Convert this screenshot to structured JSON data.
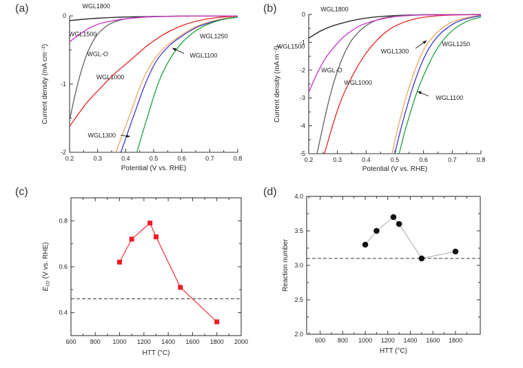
{
  "figure": {
    "background": "#ffffff"
  },
  "chart_data": [
    {
      "id": "a",
      "panel_label": "(a)",
      "type": "line",
      "xlabel": "Potential (V vs. RHE)",
      "ylabel": "Current density (mA cm⁻²)",
      "xlim": [
        0.2,
        0.8
      ],
      "ylim": [
        -2,
        0
      ],
      "xticks": [
        0.2,
        0.3,
        0.4,
        0.5,
        0.6,
        0.7,
        0.8
      ],
      "xtick_labels": [
        "0.2",
        "0.3",
        "0.4",
        "0.5",
        "0.6",
        "0.7",
        "0.8"
      ],
      "xminor": [
        0.25,
        0.35,
        0.45,
        0.55,
        0.65,
        0.75
      ],
      "yticks": [
        0,
        -1,
        -2
      ],
      "ytick_labels": [
        "0",
        "-1",
        "-2"
      ],
      "yminor": [
        -0.5,
        -1.5
      ],
      "frame": "axes",
      "series": [
        {
          "name": "WGL1800",
          "color": "#1a1a1a",
          "points": [
            [
              0.2,
              -0.07
            ],
            [
              0.25,
              -0.05
            ],
            [
              0.3,
              -0.035
            ],
            [
              0.35,
              -0.024
            ],
            [
              0.4,
              -0.017
            ],
            [
              0.5,
              -0.009
            ],
            [
              0.6,
              -0.004
            ],
            [
              0.7,
              -0.002
            ],
            [
              0.8,
              -0.001
            ]
          ]
        },
        {
          "name": "WGL-O",
          "color": "#5e5e5e",
          "points": [
            [
              0.2,
              -1.53
            ],
            [
              0.22,
              -1.15
            ],
            [
              0.24,
              -0.83
            ],
            [
              0.26,
              -0.58
            ],
            [
              0.28,
              -0.4
            ],
            [
              0.3,
              -0.27
            ],
            [
              0.33,
              -0.155
            ],
            [
              0.36,
              -0.09
            ],
            [
              0.4,
              -0.045
            ],
            [
              0.45,
              -0.02
            ],
            [
              0.5,
              -0.009
            ],
            [
              0.6,
              -0.003
            ],
            [
              0.8,
              -0.001
            ]
          ]
        },
        {
          "name": "WGL1000",
          "color": "#e52420",
          "points": [
            [
              0.2,
              -1.62
            ],
            [
              0.26,
              -1.28
            ],
            [
              0.31,
              -1.06
            ],
            [
              0.36,
              -0.85
            ],
            [
              0.42,
              -0.64
            ],
            [
              0.47,
              -0.46
            ],
            [
              0.51,
              -0.34
            ],
            [
              0.55,
              -0.24
            ],
            [
              0.6,
              -0.145
            ],
            [
              0.65,
              -0.08
            ],
            [
              0.7,
              -0.04
            ],
            [
              0.75,
              -0.016
            ],
            [
              0.8,
              -0.006
            ]
          ]
        },
        {
          "name": "WGL1300",
          "color": "#f0a35e",
          "points": [
            [
              0.365,
              -2
            ],
            [
              0.415,
              -1.45
            ],
            [
              0.455,
              -1.0
            ],
            [
              0.495,
              -0.68
            ],
            [
              0.54,
              -0.46
            ],
            [
              0.585,
              -0.32
            ],
            [
              0.635,
              -0.19
            ],
            [
              0.69,
              -0.1
            ],
            [
              0.75,
              -0.04
            ],
            [
              0.8,
              -0.015
            ]
          ]
        },
        {
          "name": "WGL1100",
          "color": "#3a35c8",
          "points": [
            [
              0.383,
              -2
            ],
            [
              0.43,
              -1.45
            ],
            [
              0.47,
              -1.0
            ],
            [
              0.51,
              -0.66
            ],
            [
              0.555,
              -0.44
            ],
            [
              0.6,
              -0.3
            ],
            [
              0.65,
              -0.175
            ],
            [
              0.7,
              -0.1
            ],
            [
              0.75,
              -0.048
            ],
            [
              0.8,
              -0.02
            ]
          ]
        },
        {
          "name": "WGL1250",
          "color": "#1aa13e",
          "points": [
            [
              0.44,
              -2
            ],
            [
              0.48,
              -1.45
            ],
            [
              0.52,
              -0.95
            ],
            [
              0.56,
              -0.62
            ],
            [
              0.6,
              -0.4
            ],
            [
              0.64,
              -0.25
            ],
            [
              0.68,
              -0.15
            ],
            [
              0.72,
              -0.085
            ],
            [
              0.76,
              -0.042
            ],
            [
              0.8,
              -0.018
            ]
          ]
        },
        {
          "name": "WGL1500",
          "color": "#cc2fcc",
          "points": [
            [
              0.2,
              -0.38
            ],
            [
              0.25,
              -0.23
            ],
            [
              0.3,
              -0.125
            ],
            [
              0.35,
              -0.075
            ],
            [
              0.4,
              -0.045
            ],
            [
              0.45,
              -0.025
            ],
            [
              0.5,
              -0.013
            ],
            [
              0.6,
              -0.005
            ],
            [
              0.8,
              -0.001
            ]
          ]
        }
      ],
      "annotations": [
        {
          "text": "WGL1800",
          "x": 0.295,
          "y": 0.14
        },
        {
          "text": "WGL1500",
          "x": 0.247,
          "y": -0.27
        },
        {
          "text": "WGL-O",
          "x": 0.3,
          "y": -0.56
        },
        {
          "text": "WGL1000",
          "x": 0.345,
          "y": -0.9
        },
        {
          "text": "WGL1250",
          "x": 0.715,
          "y": -0.3
        },
        {
          "text": "WGL1100",
          "x": 0.678,
          "y": -0.58,
          "arrow": {
            "from": [
              0.608,
              -0.55
            ],
            "to": [
              0.565,
              -0.47
            ]
          }
        },
        {
          "text": "WGL1300",
          "x": 0.315,
          "y": -1.75,
          "arrow": {
            "from": [
              0.383,
              -1.75
            ],
            "to": [
              0.417,
              -1.77
            ]
          }
        }
      ]
    },
    {
      "id": "b",
      "panel_label": "(b)",
      "type": "line",
      "xlabel": "Potential (V vs. RHE)",
      "ylabel": "Current density (mA m⁻²)",
      "xlim": [
        0.2,
        0.8
      ],
      "ylim": [
        -5,
        0
      ],
      "xticks": [
        0.2,
        0.3,
        0.4,
        0.5,
        0.6,
        0.7,
        0.8
      ],
      "xtick_labels": [
        "0.2",
        "0.3",
        "0.4",
        "0.5",
        "0.6",
        "0.7",
        "0.8"
      ],
      "xminor": [
        0.25,
        0.35,
        0.45,
        0.55,
        0.65,
        0.75
      ],
      "yticks": [
        0,
        -1,
        -2,
        -3,
        -4,
        -5
      ],
      "ytick_labels": [
        "0",
        "-1",
        "-2",
        "-3",
        "-4",
        "-5"
      ],
      "yminor": [
        -0.5,
        -1.5,
        -2.5,
        -3.5,
        -4.5
      ],
      "frame": "axes",
      "series": [
        {
          "name": "WGL1800",
          "color": "#1a1a1a",
          "points": [
            [
              0.2,
              -0.85
            ],
            [
              0.24,
              -0.6
            ],
            [
              0.28,
              -0.42
            ],
            [
              0.32,
              -0.3
            ],
            [
              0.36,
              -0.2
            ],
            [
              0.4,
              -0.13
            ],
            [
              0.45,
              -0.075
            ],
            [
              0.5,
              -0.04
            ],
            [
              0.55,
              -0.02
            ],
            [
              0.6,
              -0.01
            ],
            [
              0.8,
              -0.002
            ]
          ]
        },
        {
          "name": "WGL-O",
          "color": "#5e5e5e",
          "points": [
            [
              0.229,
              -5
            ],
            [
              0.25,
              -4.0
            ],
            [
              0.27,
              -3.1
            ],
            [
              0.29,
              -2.35
            ],
            [
              0.31,
              -1.75
            ],
            [
              0.33,
              -1.28
            ],
            [
              0.35,
              -0.92
            ],
            [
              0.375,
              -0.62
            ],
            [
              0.4,
              -0.4
            ],
            [
              0.43,
              -0.23
            ],
            [
              0.46,
              -0.13
            ],
            [
              0.5,
              -0.06
            ],
            [
              0.55,
              -0.025
            ],
            [
              0.6,
              -0.01
            ],
            [
              0.8,
              -0.002
            ]
          ]
        },
        {
          "name": "WGL1000",
          "color": "#e52420",
          "points": [
            [
              0.255,
              -5
            ],
            [
              0.28,
              -4.1
            ],
            [
              0.3,
              -3.45
            ],
            [
              0.32,
              -2.9
            ],
            [
              0.35,
              -2.25
            ],
            [
              0.38,
              -1.7
            ],
            [
              0.41,
              -1.25
            ],
            [
              0.44,
              -0.9
            ],
            [
              0.47,
              -0.62
            ],
            [
              0.5,
              -0.42
            ],
            [
              0.54,
              -0.25
            ],
            [
              0.58,
              -0.14
            ],
            [
              0.62,
              -0.075
            ],
            [
              0.66,
              -0.04
            ],
            [
              0.7,
              -0.02
            ],
            [
              0.8,
              -0.004
            ]
          ]
        },
        {
          "name": "WGL1300",
          "color": "#f0a35e",
          "points": [
            [
              0.49,
              -5
            ],
            [
              0.51,
              -4.1
            ],
            [
              0.53,
              -3.3
            ],
            [
              0.55,
              -2.6
            ],
            [
              0.57,
              -2.0
            ],
            [
              0.59,
              -1.5
            ],
            [
              0.61,
              -1.1
            ],
            [
              0.64,
              -0.72
            ],
            [
              0.67,
              -0.45
            ],
            [
              0.7,
              -0.27
            ],
            [
              0.73,
              -0.16
            ],
            [
              0.77,
              -0.07
            ],
            [
              0.8,
              -0.035
            ]
          ]
        },
        {
          "name": "WGL1100",
          "color": "#3a35c8",
          "points": [
            [
              0.5,
              -5
            ],
            [
              0.52,
              -4.15
            ],
            [
              0.54,
              -3.4
            ],
            [
              0.56,
              -2.7
            ],
            [
              0.58,
              -2.1
            ],
            [
              0.6,
              -1.6
            ],
            [
              0.62,
              -1.2
            ],
            [
              0.65,
              -0.78
            ],
            [
              0.68,
              -0.5
            ],
            [
              0.71,
              -0.3
            ],
            [
              0.74,
              -0.18
            ],
            [
              0.78,
              -0.08
            ],
            [
              0.8,
              -0.05
            ]
          ]
        },
        {
          "name": "WGL1250",
          "color": "#1aa13e",
          "points": [
            [
              0.515,
              -5
            ],
            [
              0.535,
              -4.2
            ],
            [
              0.555,
              -3.5
            ],
            [
              0.575,
              -2.85
            ],
            [
              0.6,
              -2.2
            ],
            [
              0.62,
              -1.75
            ],
            [
              0.64,
              -1.35
            ],
            [
              0.67,
              -0.9
            ],
            [
              0.7,
              -0.58
            ],
            [
              0.73,
              -0.36
            ],
            [
              0.76,
              -0.21
            ],
            [
              0.8,
              -0.095
            ]
          ]
        },
        {
          "name": "WGL1500",
          "color": "#cc2fcc",
          "points": [
            [
              0.2,
              -2.8
            ],
            [
              0.23,
              -2.1
            ],
            [
              0.26,
              -1.55
            ],
            [
              0.29,
              -1.15
            ],
            [
              0.32,
              -0.82
            ],
            [
              0.35,
              -0.58
            ],
            [
              0.38,
              -0.4
            ],
            [
              0.42,
              -0.25
            ],
            [
              0.46,
              -0.15
            ],
            [
              0.5,
              -0.08
            ],
            [
              0.55,
              -0.04
            ],
            [
              0.6,
              -0.018
            ],
            [
              0.8,
              -0.003
            ]
          ]
        }
      ],
      "annotations": [
        {
          "text": "WGL1800",
          "x": 0.29,
          "y": 0.18
        },
        {
          "text": "WGL1500",
          "x": 0.138,
          "y": -1.15
        },
        {
          "text": "WGL-O",
          "x": 0.28,
          "y": -2.0
        },
        {
          "text": "WGL1000",
          "x": 0.372,
          "y": -2.45
        },
        {
          "text": "WGL1300",
          "x": 0.5,
          "y": -1.32,
          "arrow": {
            "from": [
              0.572,
              -1.22
            ],
            "to": [
              0.612,
              -0.93
            ]
          }
        },
        {
          "text": "WGL1250",
          "x": 0.713,
          "y": -1.07
        },
        {
          "text": "WGL1100",
          "x": 0.69,
          "y": -3.0,
          "arrow": {
            "from": [
              0.618,
              -2.93
            ],
            "to": [
              0.578,
              -2.76
            ]
          }
        }
      ]
    },
    {
      "id": "c",
      "panel_label": "(c)",
      "type": "scatter-line",
      "xlabel": "HTT (°C)",
      "ylabel_rich": [
        {
          "text": "E",
          "italic": true
        },
        {
          "text": "O2",
          "sub": true
        },
        {
          "text": " (V vs. RHE)"
        }
      ],
      "xlim": [
        600,
        2000
      ],
      "ylim": [
        0.3,
        0.9
      ],
      "xticks": [
        600,
        800,
        1000,
        1200,
        1400,
        1600,
        1800,
        2000
      ],
      "xtick_labels": [
        "600",
        "800",
        "1000",
        "1200",
        "1400",
        "1600",
        "1800",
        "2000"
      ],
      "xminor": [
        700,
        900,
        1100,
        1300,
        1500,
        1700,
        1900
      ],
      "yticks": [
        0.4,
        0.6,
        0.8
      ],
      "ytick_labels": [
        "0.4",
        "0.6",
        "0.8"
      ],
      "yminor": [
        0.5,
        0.7
      ],
      "frame": "box",
      "marker": "square",
      "marker_color": "#ee1c24",
      "line_color": "#ee1c24",
      "x": [
        1000,
        1100,
        1250,
        1300,
        1500,
        1800
      ],
      "y": [
        0.62,
        0.72,
        0.79,
        0.73,
        0.51,
        0.36
      ],
      "dashed_hline": 0.46
    },
    {
      "id": "d",
      "panel_label": "(d)",
      "type": "scatter-line",
      "xlabel": "HTT (°C)",
      "ylabel": "Reaction number",
      "xlim": [
        480,
        2020
      ],
      "ylim": [
        2.0,
        4.0
      ],
      "xticks": [
        600,
        800,
        1000,
        1200,
        1400,
        1600,
        1800
      ],
      "xtick_labels": [
        "600",
        "800",
        "1000",
        "1200",
        "1400",
        "1600",
        "1800"
      ],
      "xminor": [
        500,
        700,
        900,
        1100,
        1300,
        1500,
        1700,
        1900
      ],
      "yticks": [
        2.0,
        2.5,
        3.0,
        3.5,
        4.0
      ],
      "ytick_labels": [
        "2.0",
        "2.5",
        "3.0",
        "3.5",
        "4.0"
      ],
      "yminor": [
        2.25,
        2.75,
        3.25,
        3.75
      ],
      "frame": "box",
      "marker": "circle",
      "marker_color": "#111111",
      "line_color": "#b0b0b0",
      "x": [
        1000,
        1100,
        1250,
        1300,
        1500,
        1800
      ],
      "y": [
        3.3,
        3.5,
        3.7,
        3.6,
        3.1,
        3.2
      ],
      "dashed_hline": 3.1
    }
  ]
}
